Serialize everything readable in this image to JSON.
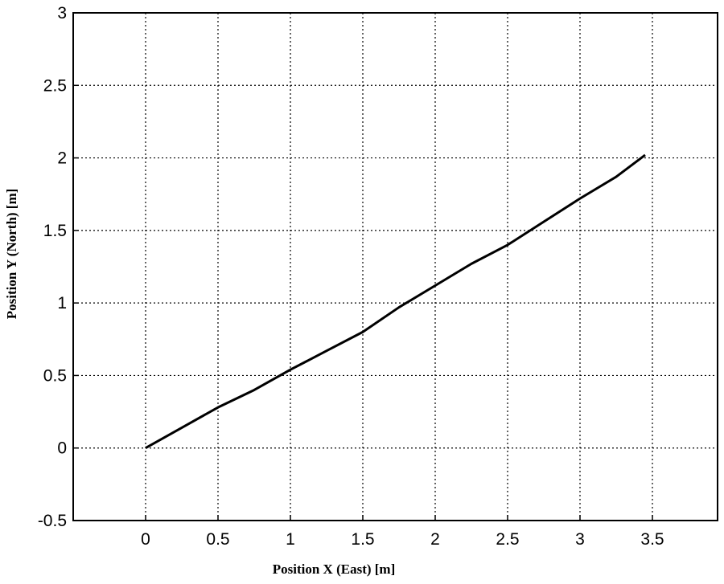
{
  "chart_data": {
    "type": "line",
    "x_label": "Position X (East) [m]",
    "y_label": "Position Y (North) [m]",
    "x": [
      0,
      0.25,
      0.5,
      0.75,
      1,
      1.25,
      1.5,
      1.75,
      2,
      2.25,
      2.5,
      2.75,
      3,
      3.25,
      3.45
    ],
    "series": [
      {
        "color": "#000000",
        "values": [
          0,
          0.14,
          0.28,
          0.4,
          0.54,
          0.67,
          0.8,
          0.97,
          1.12,
          1.27,
          1.4,
          1.56,
          1.72,
          1.87,
          2.02
        ]
      }
    ],
    "xlim": [
      -0.5,
      3.95
    ],
    "ylim": [
      -0.5,
      3
    ],
    "xticks": [
      0,
      0.5,
      1,
      1.5,
      2,
      2.5,
      3,
      3.5
    ],
    "yticks": [
      -0.5,
      0,
      0.5,
      1,
      1.5,
      2,
      2.5,
      3
    ],
    "grid": true
  }
}
